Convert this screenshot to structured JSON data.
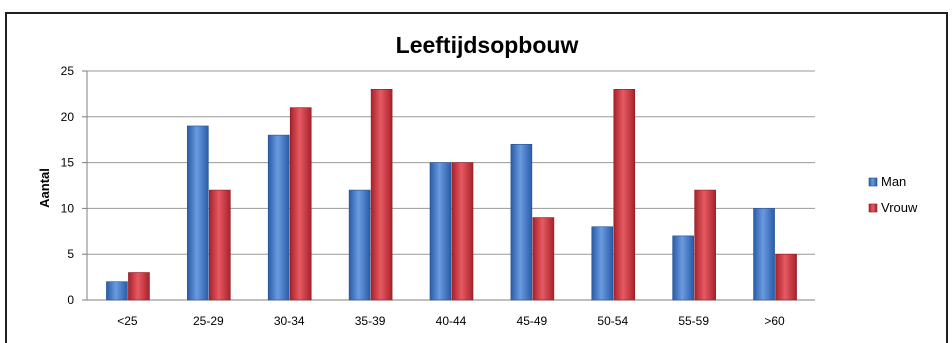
{
  "chart_data": {
    "type": "bar",
    "title": "Leeftijdsopbouw",
    "xlabel": "",
    "ylabel": "Aantal",
    "ylim": [
      0,
      25
    ],
    "yticks": [
      0,
      5,
      10,
      15,
      20,
      25
    ],
    "grid": true,
    "legend": "right",
    "categories": [
      "<25",
      "25-29",
      "30-34",
      "35-39",
      "40-44",
      "45-49",
      "50-54",
      "55-59",
      ">60"
    ],
    "series": [
      {
        "name": "Man",
        "color": "#3a73c4",
        "values": [
          2,
          19,
          18,
          12,
          15,
          17,
          8,
          7,
          10
        ]
      },
      {
        "name": "Vrouw",
        "color": "#c8313a",
        "values": [
          3,
          12,
          21,
          23,
          15,
          9,
          23,
          12,
          5
        ]
      }
    ]
  }
}
